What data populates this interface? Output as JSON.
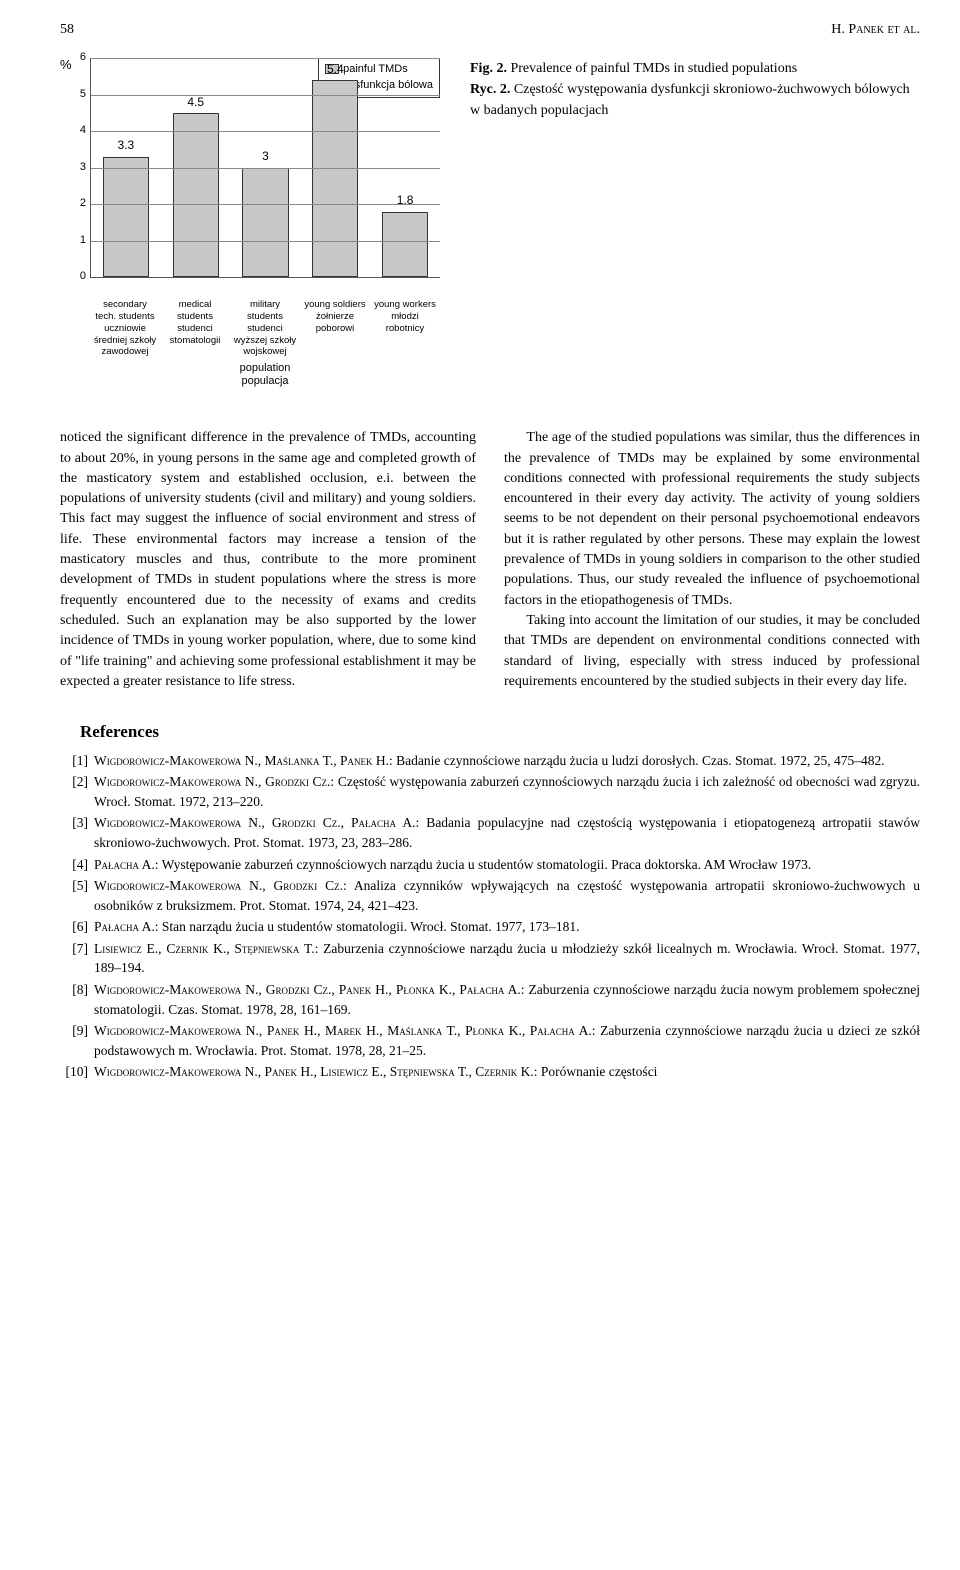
{
  "header": {
    "page_number": "58",
    "authors": "H. Panek et al."
  },
  "figure": {
    "type": "bar",
    "yaxis_label": "%",
    "ylim": [
      0,
      6
    ],
    "ytick_step": 1,
    "yticks": [
      0,
      1,
      2,
      3,
      4,
      5,
      6
    ],
    "bar_color": "#c8c8c8",
    "bar_border": "#333333",
    "grid_color": "#888888",
    "background_color": "#ffffff",
    "legend": {
      "en": "painful TMDs",
      "pl": "dysfunkcja bólowa"
    },
    "categories": [
      {
        "value": 3.3,
        "label_en": "secondary tech. students",
        "label_pl": "uczniowie średniej szkoły zawodowej"
      },
      {
        "value": 4.5,
        "label_en": "medical students",
        "label_pl": "studenci stomatologii"
      },
      {
        "value": 3,
        "label_en": "military students",
        "label_pl": "studenci wyższej szkoły wojskowej"
      },
      {
        "value": 5.4,
        "label_en": "young soldiers",
        "label_pl": "żołnierze poborowi"
      },
      {
        "value": 1.8,
        "label_en": "young workers",
        "label_pl": "młodzi robotnicy"
      }
    ],
    "xaxis_label_en": "population",
    "xaxis_label_pl": "populacja",
    "caption_en_prefix": "Fig. 2.",
    "caption_en": " Prevalence of painful TMDs in studied populations",
    "caption_pl_prefix": "Ryc. 2.",
    "caption_pl": " Częstość występowania dysfunkcji skroniowo-żuchwowych bólowych w badanych populacjach"
  },
  "body": {
    "col1_p1": "noticed the significant difference in the prevalence of TMDs, accounting to about 20%, in young persons in the same age and completed growth of the masticatory system and established occlusion, e.i. between the populations of university students (civil and military) and young soldiers. This fact may suggest the influence of social environment and stress of life. These environmental factors may increase a tension of the masticatory muscles and thus, contribute to the more prominent development of TMDs in student populations where the stress is more frequently encountered due to the necessity of exams and credits scheduled. Such an explanation may be also supported by the lower incidence of TMDs in young worker population, where, due to some kind of \"life training\" and achieving some professional establishment it may be expected a greater resistance to life stress.",
    "col2_p1": "The age of the studied populations was similar, thus the differences in the prevalence of TMDs may be explained by some environmental conditions connected with professional requirements the study subjects encountered in their every day activity. The activity of young soldiers seems to be not dependent on their personal psychoemotional endeavors but it is rather regulated by other persons. These may explain the lowest prevalence of TMDs in young soldiers in comparison to the other studied populations. Thus, our study revealed the influence of psychoemotional factors in the etiopathogenesis of TMDs.",
    "col2_p2": "Taking into account the limitation of our studies, it may be concluded that TMDs are dependent on environmental conditions connected with standard of living, especially with stress induced by professional requirements encountered by the studied subjects in their every day life."
  },
  "references": {
    "heading": "References",
    "items": [
      {
        "n": "[1]",
        "authors": "Wigdorowicz-Makowerowa N., Maślanka T., Panek H.",
        "rest": ": Badanie czynnościowe narządu żucia u ludzi dorosłych. Czas. Stomat. 1972, 25, 475–482."
      },
      {
        "n": "[2]",
        "authors": "Wigdorowicz-Makowerowa N., Grodzki Cz.",
        "rest": ": Częstość występowania zaburzeń czynnościowych narządu żucia i ich zależność od obecności wad zgryzu. Wrocł. Stomat. 1972, 213–220."
      },
      {
        "n": "[3]",
        "authors": "Wigdorowicz-Makowerowa N., Grodzki Cz., Pałacha A.",
        "rest": ": Badania populacyjne nad częstością występowania i etiopatogenezą artropatii stawów skroniowo-żuchwowych. Prot. Stomat. 1973, 23, 283–286."
      },
      {
        "n": "[4]",
        "authors": "Pałacha A.",
        "rest": ": Występowanie zaburzeń czynnościowych narządu żucia u studentów stomatologii. Praca doktorska. AM Wrocław 1973."
      },
      {
        "n": "[5]",
        "authors": "Wigdorowicz-Makowerowa N., Grodzki Cz.",
        "rest": ": Analiza czynników wpływających na częstość występowania artropatii skroniowo-żuchwowych u osobników z bruksizmem. Prot. Stomat. 1974, 24, 421–423."
      },
      {
        "n": "[6]",
        "authors": "Pałacha A.",
        "rest": ": Stan narządu żucia u studentów stomatologii. Wrocł. Stomat. 1977, 173–181."
      },
      {
        "n": "[7]",
        "authors": "Lisiewicz E., Czernik K., Stępniewska T.",
        "rest": ": Zaburzenia czynnościowe narządu żucia u młodzieży szkół licealnych m. Wrocławia. Wrocł. Stomat. 1977, 189–194."
      },
      {
        "n": "[8]",
        "authors": "Wigdorowicz-Makowerowa N., Grodzki Cz., Panek H., Płonka K., Pałacha A.",
        "rest": ": Zaburzenia czynnościowe narządu żucia nowym problemem społecznej stomatologii. Czas. Stomat. 1978, 28, 161–169."
      },
      {
        "n": "[9]",
        "authors": "Wigdorowicz-Makowerowa N., Panek H., Marek H., Maślanka T., Płonka K., Pałacha A.",
        "rest": ": Zaburzenia czynnościowe narządu żucia u dzieci ze szkół podstawowych m. Wrocławia. Prot. Stomat. 1978, 28, 21–25."
      },
      {
        "n": "[10]",
        "authors": "Wigdorowicz-Makowerowa N., Panek H., Lisiewicz E., Stępniewska T., Czernik K.",
        "rest": ": Porównanie częstości"
      }
    ]
  }
}
